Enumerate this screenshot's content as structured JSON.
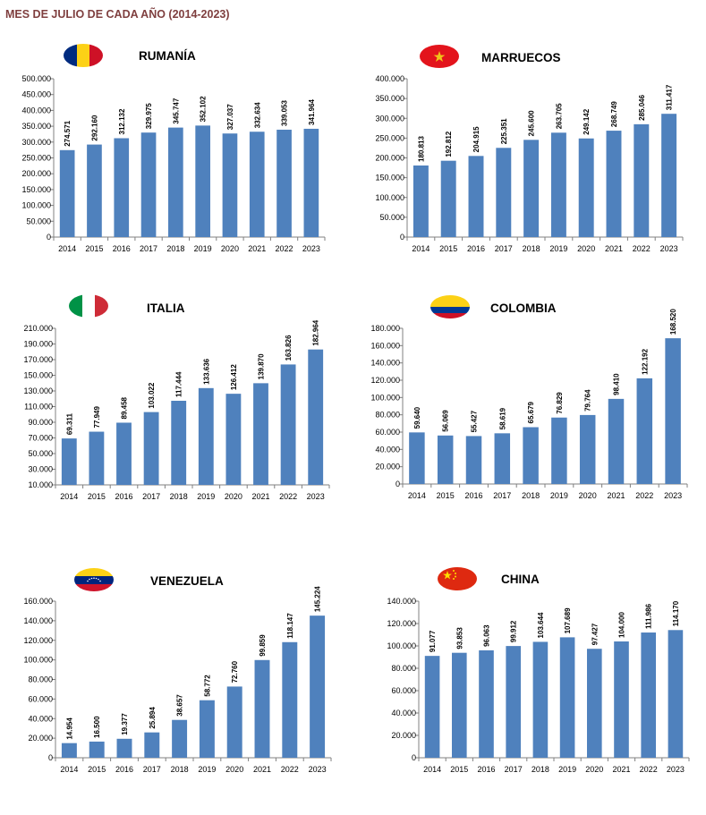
{
  "page": {
    "title": "MES DE JULIO DE CADA AÑO (2014-2023)"
  },
  "colors": {
    "bar": "#4f81bd",
    "axis": "#808080",
    "title_text": "#7f3f3f"
  },
  "chart_data": [
    {
      "type": "bar",
      "title": "RUMANÍA",
      "flag": "romania-flag",
      "categories": [
        "2014",
        "2015",
        "2016",
        "2017",
        "2018",
        "2019",
        "2020",
        "2021",
        "2022",
        "2023"
      ],
      "values": [
        274571,
        292160,
        312132,
        329975,
        345747,
        352102,
        327037,
        332634,
        339053,
        341964
      ],
      "value_labels": [
        "274.571",
        "292.160",
        "312.132",
        "329.975",
        "345.747",
        "352.102",
        "327.037",
        "332.634",
        "339.053",
        "341.964"
      ],
      "ylim": [
        0,
        500000
      ],
      "yticks": [
        0,
        50000,
        100000,
        150000,
        200000,
        250000,
        300000,
        350000,
        400000,
        450000,
        500000
      ],
      "ytick_labels": [
        "0",
        "50.000",
        "100.000",
        "150.000",
        "200.000",
        "250.000",
        "300.000",
        "350.000",
        "400.000",
        "450.000",
        "500.000"
      ],
      "grid": false,
      "legend": "none"
    },
    {
      "type": "bar",
      "title": "MARRUECOS",
      "flag": "morocco-flag",
      "categories": [
        "2014",
        "2015",
        "2016",
        "2017",
        "2018",
        "2019",
        "2020",
        "2021",
        "2022",
        "2023"
      ],
      "values": [
        180813,
        192812,
        204915,
        225351,
        245600,
        263705,
        249142,
        268749,
        285046,
        311417
      ],
      "value_labels": [
        "180.813",
        "192.812",
        "204.915",
        "225.351",
        "245.600",
        "263.705",
        "249.142",
        "268.749",
        "285.046",
        "311.417"
      ],
      "ylim": [
        0,
        400000
      ],
      "yticks": [
        0,
        50000,
        100000,
        150000,
        200000,
        250000,
        300000,
        350000,
        400000
      ],
      "ytick_labels": [
        "0",
        "50.000",
        "100.000",
        "150.000",
        "200.000",
        "250.000",
        "300.000",
        "350.000",
        "400.000"
      ],
      "grid": false,
      "legend": "none"
    },
    {
      "type": "bar",
      "title": "ITALIA",
      "flag": "italy-flag",
      "categories": [
        "2014",
        "2015",
        "2016",
        "2017",
        "2018",
        "2019",
        "2020",
        "2021",
        "2022",
        "2023"
      ],
      "values": [
        69311,
        77949,
        89458,
        103022,
        117444,
        133636,
        126412,
        139870,
        163826,
        182964
      ],
      "value_labels": [
        "69.311",
        "77.949",
        "89.458",
        "103.022",
        "117.444",
        "133.636",
        "126.412",
        "139.870",
        "163.826",
        "182.964"
      ],
      "ylim": [
        10000,
        210000
      ],
      "yticks": [
        10000,
        30000,
        50000,
        70000,
        90000,
        110000,
        130000,
        150000,
        170000,
        190000,
        210000
      ],
      "ytick_labels": [
        "10.000",
        "30.000",
        "50.000",
        "70.000",
        "90.000",
        "110.000",
        "130.000",
        "150.000",
        "170.000",
        "190.000",
        "210.000"
      ],
      "grid": false,
      "legend": "none"
    },
    {
      "type": "bar",
      "title": "COLOMBIA",
      "flag": "colombia-flag",
      "categories": [
        "2014",
        "2015",
        "2016",
        "2017",
        "2018",
        "2019",
        "2020",
        "2021",
        "2022",
        "2023"
      ],
      "values": [
        59640,
        56069,
        55427,
        58619,
        65679,
        76829,
        79764,
        98410,
        122192,
        168520
      ],
      "value_labels": [
        "59.640",
        "56.069",
        "55.427",
        "58.619",
        "65.679",
        "76.829",
        "79.764",
        "98.410",
        "122.192",
        "168.520"
      ],
      "ylim": [
        0,
        180000
      ],
      "yticks": [
        0,
        20000,
        40000,
        60000,
        80000,
        100000,
        120000,
        140000,
        160000,
        180000
      ],
      "ytick_labels": [
        "0",
        "20.000",
        "40.000",
        "60.000",
        "80.000",
        "100.000",
        "120.000",
        "140.000",
        "160.000",
        "180.000"
      ],
      "grid": false,
      "legend": "none"
    },
    {
      "type": "bar",
      "title": "VENEZUELA",
      "flag": "venezuela-flag",
      "categories": [
        "2014",
        "2015",
        "2016",
        "2017",
        "2018",
        "2019",
        "2020",
        "2021",
        "2022",
        "2023"
      ],
      "values": [
        14954,
        16500,
        19377,
        25894,
        38657,
        58772,
        72760,
        99859,
        118147,
        145224
      ],
      "value_labels": [
        "14.954",
        "16.500",
        "19.377",
        "25.894",
        "38.657",
        "58.772",
        "72.760",
        "99.859",
        "118.147",
        "145.224"
      ],
      "ylim": [
        0,
        160000
      ],
      "yticks": [
        0,
        20000,
        40000,
        60000,
        80000,
        100000,
        120000,
        140000,
        160000
      ],
      "ytick_labels": [
        "0",
        "20.000",
        "40.000",
        "60.000",
        "80.000",
        "100.000",
        "120.000",
        "140.000",
        "160.000"
      ],
      "grid": false,
      "legend": "none"
    },
    {
      "type": "bar",
      "title": "CHINA",
      "flag": "china-flag",
      "categories": [
        "2014",
        "2015",
        "2016",
        "2017",
        "2018",
        "2019",
        "2020",
        "2021",
        "2022",
        "2023"
      ],
      "values": [
        91077,
        93853,
        96063,
        99912,
        103644,
        107689,
        97427,
        104000,
        111986,
        114170
      ],
      "value_labels": [
        "91.077",
        "93.853",
        "96.063",
        "99.912",
        "103.644",
        "107.689",
        "97.427",
        "104.000",
        "111.986",
        "114.170"
      ],
      "ylim": [
        0,
        140000
      ],
      "yticks": [
        0,
        20000,
        40000,
        60000,
        80000,
        100000,
        120000,
        140000
      ],
      "ytick_labels": [
        "0",
        "20.000",
        "40.000",
        "60.000",
        "80.000",
        "100.000",
        "120.000",
        "140.000"
      ],
      "grid": false,
      "legend": "none"
    }
  ]
}
